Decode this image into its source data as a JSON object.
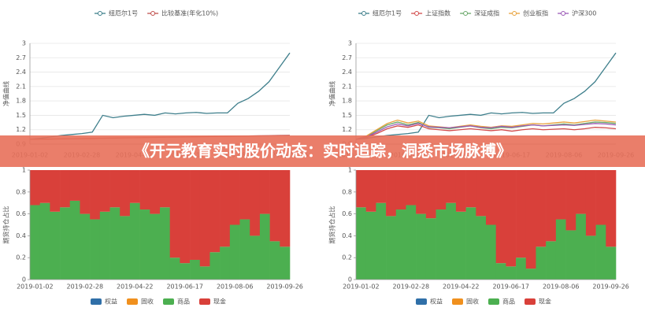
{
  "banner": {
    "title": "《开元教育实时股价动态：实时追踪，洞悉市场脉搏》"
  },
  "chart_data": [
    {
      "type": "line",
      "y_label": "净值曲线",
      "ylim": [
        0.9,
        3
      ],
      "yticks": [
        0.9,
        1.2,
        1.5,
        1.8,
        2.1,
        2.4,
        2.7,
        3
      ],
      "grid": true,
      "categories": [
        "2019-01-02",
        null,
        null,
        null,
        null,
        "2019-02-28",
        null,
        null,
        null,
        null,
        "2019-04-22",
        null,
        null,
        null,
        null,
        "2019-06-17",
        null,
        null,
        null,
        null,
        "2019-08-06",
        null,
        null,
        null,
        null,
        "2019-09-26"
      ],
      "series": [
        {
          "name": "纽厄尔1号",
          "color": "#3f7f8c",
          "values": [
            1.0,
            1.02,
            1.05,
            1.08,
            1.1,
            1.12,
            1.15,
            1.5,
            1.45,
            1.48,
            1.5,
            1.52,
            1.5,
            1.55,
            1.53,
            1.55,
            1.56,
            1.54,
            1.55,
            1.55,
            1.75,
            1.85,
            2.0,
            2.2,
            2.5,
            2.8
          ]
        },
        {
          "name": "比较基准(年化10%)",
          "color": "#c0504d",
          "values": [
            1.0,
            1.003,
            1.006,
            1.01,
            1.013,
            1.016,
            1.02,
            1.023,
            1.026,
            1.03,
            1.033,
            1.036,
            1.04,
            1.043,
            1.046,
            1.05,
            1.053,
            1.056,
            1.06,
            1.063,
            1.066,
            1.07,
            1.073,
            1.076,
            1.08,
            1.083
          ]
        }
      ]
    },
    {
      "type": "line",
      "y_label": "净值曲线",
      "ylim": [
        0.9,
        3
      ],
      "yticks": [
        0.9,
        1.2,
        1.5,
        1.8,
        2.1,
        2.4,
        2.7,
        3
      ],
      "grid": true,
      "categories": [
        "2019-01-02",
        null,
        null,
        null,
        null,
        "2019-02-28",
        null,
        null,
        null,
        null,
        "2019-04-22",
        null,
        null,
        null,
        null,
        "2019-06-17",
        null,
        null,
        null,
        null,
        "2019-08-06",
        null,
        null,
        null,
        null,
        "2019-09-26"
      ],
      "series": [
        {
          "name": "纽厄尔1号",
          "color": "#3f7f8c",
          "values": [
            1.0,
            1.02,
            1.05,
            1.08,
            1.1,
            1.12,
            1.15,
            1.5,
            1.45,
            1.48,
            1.5,
            1.52,
            1.5,
            1.55,
            1.53,
            1.55,
            1.56,
            1.54,
            1.55,
            1.55,
            1.75,
            1.85,
            2.0,
            2.2,
            2.5,
            2.8
          ]
        },
        {
          "name": "上证指数",
          "color": "#d24b4b",
          "values": [
            1.0,
            1.04,
            1.12,
            1.22,
            1.28,
            1.25,
            1.3,
            1.22,
            1.2,
            1.18,
            1.2,
            1.22,
            1.2,
            1.18,
            1.2,
            1.17,
            1.2,
            1.22,
            1.2,
            1.21,
            1.22,
            1.2,
            1.22,
            1.25,
            1.24,
            1.22
          ]
        },
        {
          "name": "深证成指",
          "color": "#6aa86a",
          "values": [
            1.0,
            1.06,
            1.18,
            1.3,
            1.36,
            1.3,
            1.35,
            1.25,
            1.24,
            1.22,
            1.25,
            1.28,
            1.24,
            1.22,
            1.25,
            1.24,
            1.27,
            1.3,
            1.28,
            1.3,
            1.32,
            1.3,
            1.33,
            1.36,
            1.35,
            1.33
          ]
        },
        {
          "name": "创业板指",
          "color": "#e8a23c",
          "values": [
            1.0,
            1.07,
            1.2,
            1.33,
            1.4,
            1.34,
            1.38,
            1.28,
            1.26,
            1.24,
            1.27,
            1.3,
            1.27,
            1.25,
            1.28,
            1.27,
            1.3,
            1.33,
            1.32,
            1.34,
            1.36,
            1.34,
            1.37,
            1.4,
            1.38,
            1.36
          ]
        },
        {
          "name": "沪深300",
          "color": "#9b59b6",
          "values": [
            1.0,
            1.05,
            1.15,
            1.26,
            1.32,
            1.28,
            1.33,
            1.26,
            1.25,
            1.24,
            1.26,
            1.28,
            1.25,
            1.24,
            1.27,
            1.25,
            1.28,
            1.3,
            1.28,
            1.29,
            1.3,
            1.29,
            1.31,
            1.33,
            1.32,
            1.3
          ]
        }
      ]
    },
    {
      "type": "bar",
      "stacked": true,
      "y_label": "期货持仓占比",
      "ylim": [
        0,
        1
      ],
      "yticks": [
        0,
        0.2,
        0.4,
        0.6,
        0.8,
        1
      ],
      "grid": false,
      "categories": [
        "2019-01-02",
        null,
        null,
        null,
        null,
        "2019-02-28",
        null,
        null,
        null,
        null,
        "2019-04-22",
        null,
        null,
        null,
        null,
        "2019-06-17",
        null,
        null,
        null,
        null,
        "2019-08-06",
        null,
        null,
        null,
        null,
        "2019-09-26"
      ],
      "series": [
        {
          "name": "权益",
          "color": "#2f6fa8",
          "values": [
            0,
            0,
            0,
            0,
            0,
            0,
            0,
            0,
            0,
            0,
            0,
            0,
            0,
            0,
            0,
            0,
            0,
            0,
            0,
            0,
            0,
            0,
            0,
            0,
            0,
            0
          ]
        },
        {
          "name": "固收",
          "color": "#f0901e",
          "values": [
            0,
            0,
            0,
            0,
            0,
            0,
            0,
            0,
            0,
            0,
            0,
            0,
            0,
            0,
            0,
            0,
            0,
            0,
            0,
            0,
            0,
            0,
            0,
            0,
            0,
            0
          ]
        },
        {
          "name": "商品",
          "color": "#4caf50",
          "values": [
            0.68,
            0.7,
            0.62,
            0.66,
            0.72,
            0.6,
            0.55,
            0.62,
            0.66,
            0.58,
            0.7,
            0.64,
            0.6,
            0.66,
            0.2,
            0.15,
            0.18,
            0.12,
            0.25,
            0.3,
            0.5,
            0.55,
            0.4,
            0.6,
            0.35,
            0.3
          ]
        },
        {
          "name": "现金",
          "color": "#d9403a",
          "values": [
            0.32,
            0.3,
            0.38,
            0.34,
            0.28,
            0.4,
            0.45,
            0.38,
            0.34,
            0.42,
            0.3,
            0.36,
            0.4,
            0.34,
            0.8,
            0.85,
            0.82,
            0.88,
            0.75,
            0.7,
            0.5,
            0.45,
            0.6,
            0.4,
            0.65,
            0.7
          ]
        }
      ]
    },
    {
      "type": "bar",
      "stacked": true,
      "y_label": "期货持仓占比",
      "ylim": [
        0,
        1
      ],
      "yticks": [
        0,
        0.2,
        0.4,
        0.6,
        0.8,
        1
      ],
      "grid": false,
      "categories": [
        "2019-01-02",
        null,
        null,
        null,
        null,
        "2019-02-28",
        null,
        null,
        null,
        null,
        "2019-04-22",
        null,
        null,
        null,
        null,
        "2019-06-17",
        null,
        null,
        null,
        null,
        "2019-08-06",
        null,
        null,
        null,
        null,
        "2019-09-26"
      ],
      "series": [
        {
          "name": "权益",
          "color": "#2f6fa8",
          "values": [
            0,
            0,
            0,
            0,
            0,
            0,
            0,
            0,
            0,
            0,
            0,
            0,
            0,
            0,
            0,
            0,
            0,
            0,
            0,
            0,
            0,
            0,
            0,
            0,
            0,
            0
          ]
        },
        {
          "name": "固收",
          "color": "#f0901e",
          "values": [
            0,
            0,
            0,
            0,
            0,
            0,
            0,
            0,
            0,
            0,
            0,
            0,
            0,
            0,
            0,
            0,
            0,
            0,
            0,
            0,
            0,
            0,
            0,
            0,
            0,
            0
          ]
        },
        {
          "name": "商品",
          "color": "#4caf50",
          "values": [
            0.66,
            0.62,
            0.7,
            0.58,
            0.64,
            0.68,
            0.6,
            0.56,
            0.64,
            0.7,
            0.62,
            0.66,
            0.58,
            0.5,
            0.15,
            0.12,
            0.2,
            0.1,
            0.3,
            0.35,
            0.55,
            0.45,
            0.6,
            0.4,
            0.5,
            0.3
          ]
        },
        {
          "name": "现金",
          "color": "#d9403a",
          "values": [
            0.34,
            0.38,
            0.3,
            0.42,
            0.36,
            0.32,
            0.4,
            0.44,
            0.36,
            0.3,
            0.38,
            0.34,
            0.42,
            0.5,
            0.85,
            0.88,
            0.8,
            0.9,
            0.7,
            0.65,
            0.45,
            0.55,
            0.4,
            0.6,
            0.5,
            0.7
          ]
        }
      ]
    }
  ]
}
